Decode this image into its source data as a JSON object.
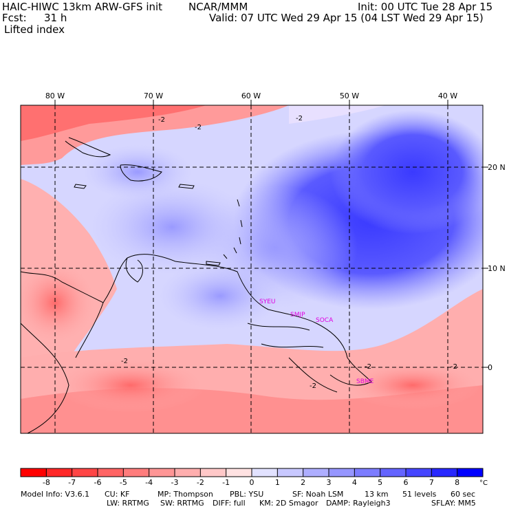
{
  "header": {
    "model_title": "HAIC-HIWC 13km ARW-GFS init",
    "org": "NCAR/MMM",
    "init_time": "Init: 00 UTC Tue 28 Apr 15",
    "forecast_label": "Fcst:",
    "forecast_hours": "31 h",
    "valid_time": "Valid: 07 UTC Wed 29 Apr 15 (04 LST Wed 29 Apr 15)",
    "field_name": "Lifted index"
  },
  "axes": {
    "lon_labels": [
      "80 W",
      "70 W",
      "60 W",
      "50 W",
      "40 W"
    ],
    "lat_labels": [
      "20 N",
      "10 N",
      "0"
    ]
  },
  "stations": [
    "SYEU",
    "SMJP",
    "SOCA",
    "SBME"
  ],
  "contour_label": "-2",
  "colorbar": {
    "unit": "°C",
    "tick_labels": [
      "-8",
      "-7",
      "-6",
      "-5",
      "-4",
      "-3",
      "-2",
      "-1",
      "0",
      "1",
      "2",
      "3",
      "4",
      "5",
      "6",
      "7",
      "8"
    ],
    "colors": [
      "#ff0000",
      "#ff2828",
      "#ff4646",
      "#ff6464",
      "#ff7c7c",
      "#ff9696",
      "#ffaeae",
      "#ffc8c8",
      "#ffe2e2",
      "#e2e2ff",
      "#c8c8ff",
      "#aeaeff",
      "#9696ff",
      "#7c7cff",
      "#6464ff",
      "#4646ff",
      "#2828ff",
      "#0000ff"
    ]
  },
  "footer": {
    "line1": [
      "Model Info: V3.6.1",
      "CU: KF",
      "MP: Thompson",
      "PBL: YSU",
      "SF: Noah LSM",
      "13 km",
      "51 levels",
      "60 sec"
    ],
    "line2": [
      "LW: RRTMG",
      "SW: RRTMG",
      "DIFF: full",
      "KM: 2D Smagor",
      "DAMP: Rayleigh3",
      "SFLAY: MM5"
    ]
  }
}
